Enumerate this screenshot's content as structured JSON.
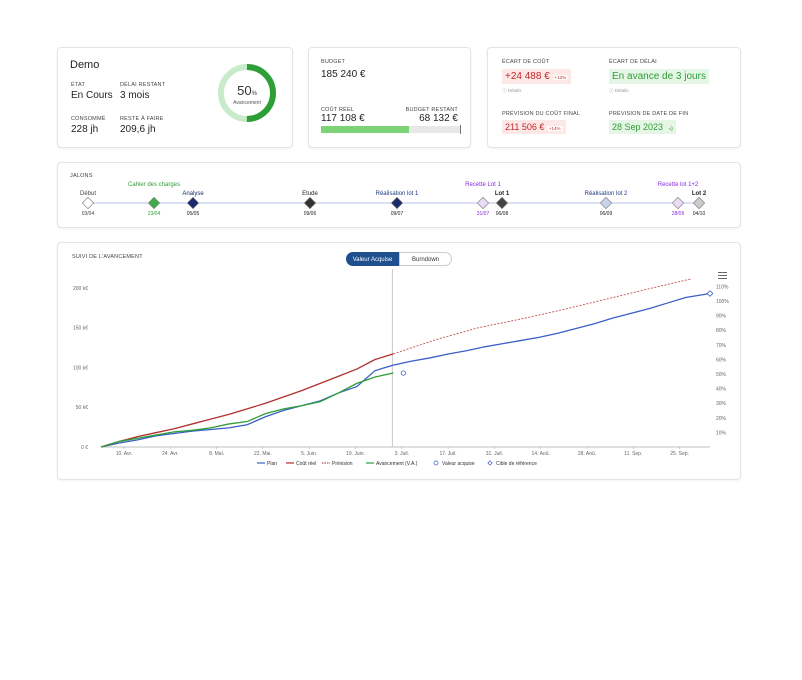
{
  "project": {
    "name": "Demo",
    "etat_label": "ÉTAT",
    "etat_value": "En Cours",
    "delai_label": "DÉLAI RESTANT",
    "delai_value": "3 mois",
    "consomme_label": "CONSOMMÉ",
    "consomme_value": "228 jh",
    "reste_label": "RESTE À FAIRE",
    "reste_value": "209,6 jh",
    "progress_percent": 50,
    "progress_text": "50",
    "progress_unit": "%",
    "progress_caption": "Avancement"
  },
  "budget": {
    "label": "BUDGET",
    "value": "185 240 €",
    "cout_reel_label": "COÛT RÉEL",
    "cout_reel_value": "117 108 €",
    "restant_label": "BUDGET RESTANT",
    "restant_value": "68 132 €",
    "consumed_fraction": 0.632
  },
  "ecarts": {
    "cout_label": "ÉCART DE COÛT",
    "cout_value": "+24 488 €",
    "cout_pct": "+13%",
    "details": "Détails",
    "delai_label": "ÉCART DE DÉLAI",
    "delai_value": "En avance de 3 jours",
    "prev_cout_label": "PRÉVISION DU COÛT FINAL",
    "prev_cout_value": "211 506 €",
    "prev_cout_pct": "+14%",
    "prev_date_label": "PRÉVISION DE DATE DE FIN",
    "prev_date_value": "28 Sep 2023",
    "red": "#c62828",
    "green": "#2e9e36"
  },
  "jalons": {
    "title": "JALONS",
    "items": [
      {
        "label": "Début",
        "date": "03/04",
        "color": "#ffffff",
        "text_color": "#444",
        "date_color": "#444"
      },
      {
        "label": "Cahier des charges",
        "date": "23/04",
        "color": "#3fae49",
        "text_color": "#2e9e36",
        "date_color": "#2e9e36"
      },
      {
        "label": "Analyse",
        "date": "05/05",
        "color": "#1a2a6c",
        "text_color": "#1a2a6c",
        "date_color": "#222"
      },
      {
        "label": "Etude",
        "date": "09/06",
        "color": "#333333",
        "text_color": "#222",
        "date_color": "#222"
      },
      {
        "label": "Réalisation lot 1",
        "date": "09/07",
        "color": "#1a2a6c",
        "text_color": "#1a3a7c",
        "date_color": "#222"
      },
      {
        "label": "Recette Lot 1",
        "date": "31/07",
        "color": "#e8dcf7",
        "text_color": "#8a2be2",
        "date_color": "#8a2be2"
      },
      {
        "label": "Lot 1",
        "date": "06/08",
        "color": "#444444",
        "text_color": "#222",
        "date_color": "#222"
      },
      {
        "label": "Réalisation lot 2",
        "date": "06/09",
        "color": "#c8d4ee",
        "text_color": "#1a3a7c",
        "date_color": "#222"
      },
      {
        "label": "Recette lot 1+2",
        "date": "28/09",
        "color": "#e8dcf7",
        "text_color": "#8a2be2",
        "date_color": "#8a2be2"
      },
      {
        "label": "Lot 2",
        "date": "04/10",
        "color": "#cccccc",
        "text_color": "#222",
        "date_color": "#222"
      }
    ]
  },
  "suivi": {
    "title": "SUIVI DE L'AVANCEMENT",
    "tab_active": "Valeur Acquise",
    "tab_other": "Burndown",
    "menu_icon": "hamburger-icon"
  },
  "chart_data": {
    "type": "line",
    "x_ticks": [
      "10. Avr.",
      "24. Avr.",
      "8. Mai.",
      "22. Mai.",
      "5. Juin.",
      "19. Juin.",
      "3. Juil.",
      "17. Juil.",
      "31. Juil.",
      "14. Aoû.",
      "28. Aoû.",
      "11. Sep.",
      "25. Sep."
    ],
    "y_ticks": [
      "0 €",
      "50 k€",
      "100 k€",
      "150 k€",
      "200 k€"
    ],
    "y2_ticks": [
      "10%",
      "20%",
      "30%",
      "40%",
      "50%",
      "60%",
      "70%",
      "80%",
      "90%",
      "100%",
      "110%"
    ],
    "ylim": [
      0,
      210000
    ],
    "legend": [
      "Plan",
      "Coût réel",
      "Prévision",
      "Avancement (V.A.)",
      "Valeur acquise",
      "Cible de référence"
    ],
    "colors": {
      "plan": "#3b5fc8",
      "cout": "#b0302c",
      "prevision": "#c0504d",
      "avancement": "#2e9e36"
    },
    "series": [
      {
        "name": "Plan",
        "key": "plan",
        "x": [
          0,
          0.03,
          0.06,
          0.09,
          0.12,
          0.15,
          0.18,
          0.21,
          0.24,
          0.27,
          0.3,
          0.33,
          0.36,
          0.39,
          0.42,
          0.45,
          0.48,
          0.51,
          0.54,
          0.57,
          0.6,
          0.63,
          0.66,
          0.69,
          0.72,
          0.75,
          0.78,
          0.81,
          0.84,
          0.87,
          0.9,
          0.93,
          0.96,
          1.0
        ],
        "y": [
          0,
          5000,
          9000,
          14000,
          17000,
          20000,
          22000,
          24000,
          28000,
          38000,
          46000,
          52000,
          58000,
          68000,
          76000,
          96000,
          103000,
          108000,
          112000,
          117000,
          121000,
          126000,
          130000,
          134000,
          138000,
          143000,
          149000,
          155000,
          162000,
          168000,
          174000,
          181000,
          188000,
          193000
        ]
      },
      {
        "name": "Coût réel",
        "key": "cout",
        "x": [
          0,
          0.03,
          0.06,
          0.09,
          0.12,
          0.15,
          0.18,
          0.21,
          0.24,
          0.27,
          0.3,
          0.33,
          0.36,
          0.39,
          0.42,
          0.45,
          0.48
        ],
        "y": [
          0,
          7000,
          13000,
          18000,
          23000,
          29000,
          35000,
          41000,
          48000,
          55000,
          63000,
          71000,
          80000,
          89000,
          98000,
          110000,
          117108
        ]
      },
      {
        "name": "Prévision",
        "key": "prevision",
        "x": [
          0.48,
          0.55,
          0.62,
          0.69,
          0.76,
          0.83,
          0.9,
          0.97
        ],
        "y": [
          117108,
          135000,
          150000,
          161000,
          173000,
          186000,
          199000,
          211506
        ]
      },
      {
        "name": "Avancement (V.A.)",
        "key": "avancement",
        "x": [
          0,
          0.03,
          0.06,
          0.09,
          0.12,
          0.15,
          0.18,
          0.21,
          0.24,
          0.27,
          0.3,
          0.33,
          0.36,
          0.39,
          0.42,
          0.45,
          0.48
        ],
        "y": [
          0,
          7000,
          11000,
          15000,
          19000,
          21000,
          24000,
          29000,
          32000,
          42000,
          48000,
          52000,
          57000,
          68000,
          80000,
          88000,
          93000
        ]
      }
    ]
  }
}
